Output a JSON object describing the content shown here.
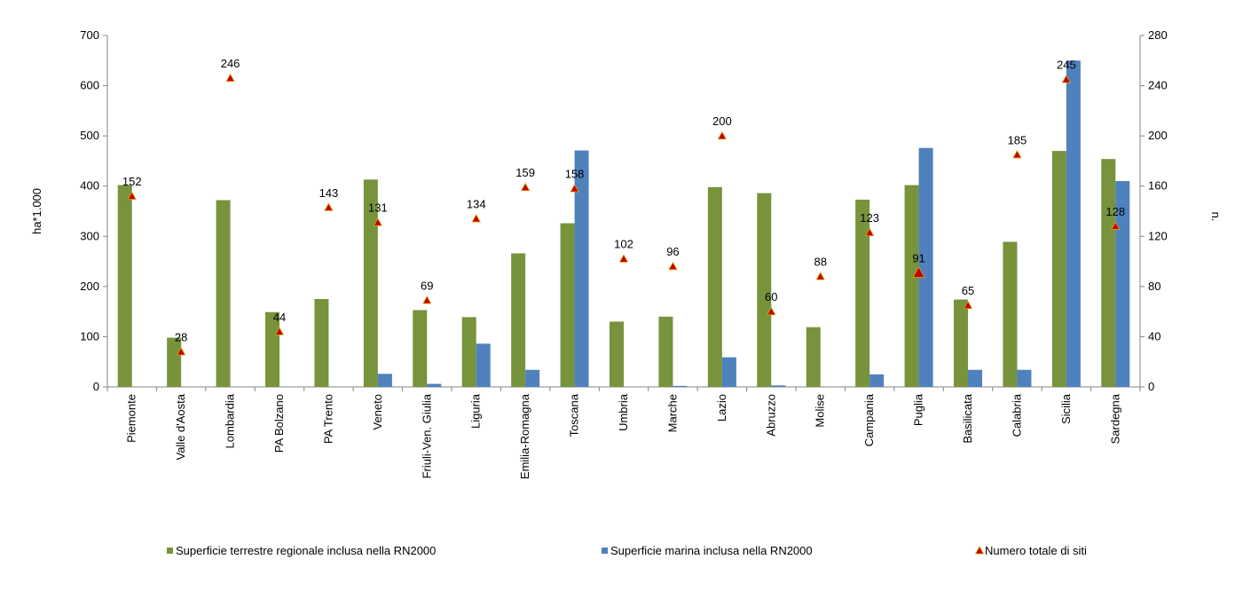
{
  "chart_data": {
    "type": "bar",
    "title": "",
    "categories": [
      "Piemonte",
      "Valle d'Aosta",
      "Lombardia",
      "PA Bolzano",
      "PA Trento",
      "Veneto",
      "Friuli-Ven. Giulia",
      "Liguria",
      "Emilia-Romagna",
      "Toscana",
      "Umbria",
      "Marche",
      "Lazio",
      "Abruzzo",
      "Molise",
      "Campania",
      "Puglia",
      "Basilicata",
      "Calabria",
      "Sicilia",
      "Sardegna"
    ],
    "series": [
      {
        "name": "Superficie terrestre regionale inclusa nella RN2000",
        "color": "#77933c",
        "axis": "left",
        "values": [
          402,
          98,
          372,
          149,
          175,
          413,
          153,
          139,
          266,
          326,
          130,
          140,
          398,
          386,
          119,
          373,
          402,
          174,
          289,
          470,
          454
        ]
      },
      {
        "name": "Superficie marina inclusa nella RN2000",
        "color": "#4f81bd",
        "axis": "left",
        "values": [
          0,
          0,
          0,
          0,
          0,
          26,
          6,
          86,
          34,
          471,
          0,
          2,
          59,
          3,
          0,
          25,
          476,
          34,
          34,
          650,
          410
        ]
      },
      {
        "name": "Numero totale di siti",
        "type": "marker",
        "color": "#c00000",
        "axis": "right",
        "values": [
          152,
          28,
          246,
          44,
          143,
          131,
          69,
          134,
          159,
          158,
          102,
          96,
          200,
          60,
          88,
          123,
          91,
          65,
          185,
          245,
          128
        ],
        "labels": [
          "152",
          "28",
          "246",
          "44",
          "143",
          "131",
          "69",
          "134",
          "159",
          "158",
          "102",
          "96",
          "200",
          "60",
          "88",
          "123",
          "91",
          "65",
          "185",
          "245",
          "128"
        ]
      }
    ],
    "ylabel": "ha*1.000",
    "ylim": [
      0,
      700
    ],
    "yticks": [
      "0",
      "100",
      "200",
      "300",
      "400",
      "500",
      "600",
      "700"
    ],
    "y2label": "n.",
    "y2lim": [
      0,
      280
    ],
    "y2ticks": [
      "0",
      "40",
      "80",
      "120",
      "160",
      "200",
      "240",
      "280"
    ],
    "legend_position": "bottom",
    "grid": false
  }
}
